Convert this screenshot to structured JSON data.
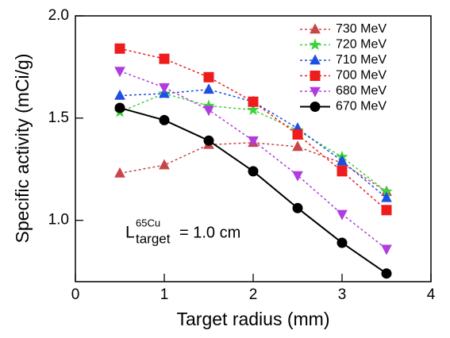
{
  "chart_data": {
    "type": "line",
    "x_label": "Target radius (mm)",
    "y_label": "Specific activity (mCi/g)",
    "x": [
      0.5,
      1,
      1.5,
      2,
      2.5,
      3,
      3.5
    ],
    "series": [
      {
        "name": "730 MeV",
        "color": "#c8464a",
        "marker": "triangle",
        "dash": "dotted",
        "values": [
          1.23,
          1.27,
          1.37,
          1.38,
          1.36,
          1.28,
          1.14
        ]
      },
      {
        "name": "720 MeV",
        "color": "#3cd23c",
        "marker": "star",
        "dash": "dotted",
        "values": [
          1.53,
          1.62,
          1.56,
          1.54,
          1.44,
          1.31,
          1.14
        ]
      },
      {
        "name": "710 MeV",
        "color": "#1f4fe0",
        "marker": "triangle",
        "dash": "dotted",
        "values": [
          1.61,
          1.62,
          1.64,
          1.58,
          1.45,
          1.29,
          1.11
        ]
      },
      {
        "name": "700 MeV",
        "color": "#ee1c1c",
        "marker": "square",
        "dash": "dotted",
        "values": [
          1.84,
          1.79,
          1.7,
          1.58,
          1.42,
          1.24,
          1.05
        ]
      },
      {
        "name": "680 MeV",
        "color": "#b03ce0",
        "marker": "triangle-down",
        "dash": "dotted",
        "values": [
          1.73,
          1.65,
          1.54,
          1.39,
          1.22,
          1.03,
          0.86
        ]
      },
      {
        "name": "670 MeV",
        "color": "#000000",
        "marker": "circle",
        "dash": "solid",
        "values": [
          1.55,
          1.49,
          1.39,
          1.24,
          1.06,
          0.89,
          0.74
        ]
      }
    ],
    "annotation": {
      "symbol": "L",
      "superscript": "65Cu",
      "subscript": "target",
      "text": "= 1.0 cm"
    },
    "xlim": [
      0,
      4
    ],
    "xticks": [
      0,
      1,
      2,
      3,
      4
    ],
    "ylim": [
      0.7,
      2.0
    ],
    "yticks": [
      {
        "value": 1.0,
        "label": "1.0"
      },
      {
        "value": 1.5,
        "label": "1.5"
      },
      {
        "value": 2.0,
        "label": "2.0"
      }
    ],
    "legend": "upper right"
  }
}
